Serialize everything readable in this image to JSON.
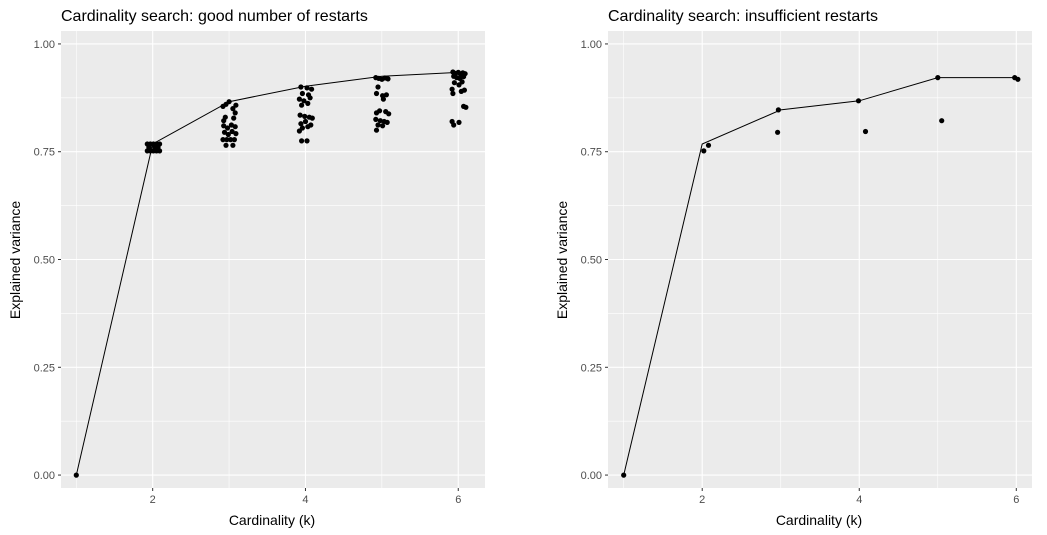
{
  "colors": {
    "panel_bg": "#ebebeb",
    "grid": "#ffffff",
    "ink": "#000000",
    "tick_text": "#4d4d4d"
  },
  "chart_data": [
    {
      "type": "scatter",
      "title": "Cardinality search: good number of restarts",
      "xlabel": "Cardinality (k)",
      "ylabel": "Explained variance",
      "xlim": [
        0.8,
        6.35
      ],
      "ylim": [
        -0.03,
        1.03
      ],
      "x_ticks": [
        2,
        4,
        6
      ],
      "x_tick_labels": [
        "2",
        "4",
        "6"
      ],
      "y_ticks": [
        0,
        0.25,
        0.5,
        0.75,
        1
      ],
      "y_tick_labels": [
        "0.00",
        "0.25",
        "0.50",
        "0.75",
        "1.00"
      ],
      "grid": true,
      "legend": "none",
      "line": {
        "x": [
          1,
          2,
          3,
          4,
          5,
          6
        ],
        "y": [
          0.0,
          0.768,
          0.866,
          0.902,
          0.925,
          0.934
        ]
      },
      "points": [
        {
          "x": 1.0,
          "y": 0.0
        },
        {
          "x": 1.93,
          "y": 0.768
        },
        {
          "x": 1.97,
          "y": 0.768
        },
        {
          "x": 2.01,
          "y": 0.768
        },
        {
          "x": 2.05,
          "y": 0.768
        },
        {
          "x": 2.09,
          "y": 0.768
        },
        {
          "x": 1.93,
          "y": 0.752
        },
        {
          "x": 1.97,
          "y": 0.752
        },
        {
          "x": 2.01,
          "y": 0.752
        },
        {
          "x": 2.05,
          "y": 0.752
        },
        {
          "x": 2.09,
          "y": 0.752
        },
        {
          "x": 1.95,
          "y": 0.76
        },
        {
          "x": 2.03,
          "y": 0.76
        },
        {
          "x": 2.07,
          "y": 0.76
        },
        {
          "x": 2.92,
          "y": 0.855
        },
        {
          "x": 2.96,
          "y": 0.86
        },
        {
          "x": 3.0,
          "y": 0.866
        },
        {
          "x": 3.05,
          "y": 0.85
        },
        {
          "x": 3.09,
          "y": 0.858
        },
        {
          "x": 2.95,
          "y": 0.83
        },
        {
          "x": 3.06,
          "y": 0.828
        },
        {
          "x": 2.93,
          "y": 0.81
        },
        {
          "x": 2.98,
          "y": 0.805
        },
        {
          "x": 3.03,
          "y": 0.812
        },
        {
          "x": 3.08,
          "y": 0.808
        },
        {
          "x": 2.94,
          "y": 0.795
        },
        {
          "x": 2.99,
          "y": 0.79
        },
        {
          "x": 3.04,
          "y": 0.797
        },
        {
          "x": 3.09,
          "y": 0.792
        },
        {
          "x": 2.92,
          "y": 0.778
        },
        {
          "x": 2.97,
          "y": 0.778
        },
        {
          "x": 3.02,
          "y": 0.778
        },
        {
          "x": 3.07,
          "y": 0.778
        },
        {
          "x": 2.96,
          "y": 0.765
        },
        {
          "x": 3.05,
          "y": 0.765
        },
        {
          "x": 2.93,
          "y": 0.822
        },
        {
          "x": 3.08,
          "y": 0.84
        },
        {
          "x": 3.94,
          "y": 0.9
        },
        {
          "x": 4.02,
          "y": 0.898
        },
        {
          "x": 4.08,
          "y": 0.895
        },
        {
          "x": 3.96,
          "y": 0.885
        },
        {
          "x": 4.04,
          "y": 0.882
        },
        {
          "x": 3.92,
          "y": 0.872
        },
        {
          "x": 3.98,
          "y": 0.868
        },
        {
          "x": 4.06,
          "y": 0.875
        },
        {
          "x": 3.95,
          "y": 0.858
        },
        {
          "x": 4.03,
          "y": 0.862
        },
        {
          "x": 3.93,
          "y": 0.835
        },
        {
          "x": 3.99,
          "y": 0.832
        },
        {
          "x": 4.05,
          "y": 0.83
        },
        {
          "x": 4.09,
          "y": 0.828
        },
        {
          "x": 3.94,
          "y": 0.815
        },
        {
          "x": 4.0,
          "y": 0.82
        },
        {
          "x": 4.07,
          "y": 0.812
        },
        {
          "x": 3.96,
          "y": 0.805
        },
        {
          "x": 4.03,
          "y": 0.808
        },
        {
          "x": 3.92,
          "y": 0.798
        },
        {
          "x": 3.95,
          "y": 0.775
        },
        {
          "x": 4.02,
          "y": 0.775
        },
        {
          "x": 4.92,
          "y": 0.922
        },
        {
          "x": 4.96,
          "y": 0.92
        },
        {
          "x": 5.0,
          "y": 0.918
        },
        {
          "x": 5.04,
          "y": 0.921
        },
        {
          "x": 5.08,
          "y": 0.919
        },
        {
          "x": 4.95,
          "y": 0.9
        },
        {
          "x": 4.93,
          "y": 0.885
        },
        {
          "x": 5.01,
          "y": 0.88
        },
        {
          "x": 5.06,
          "y": 0.882
        },
        {
          "x": 5.02,
          "y": 0.872
        },
        {
          "x": 4.97,
          "y": 0.845
        },
        {
          "x": 5.05,
          "y": 0.843
        },
        {
          "x": 4.93,
          "y": 0.84
        },
        {
          "x": 5.09,
          "y": 0.838
        },
        {
          "x": 4.92,
          "y": 0.825
        },
        {
          "x": 4.98,
          "y": 0.822
        },
        {
          "x": 5.03,
          "y": 0.82
        },
        {
          "x": 5.07,
          "y": 0.818
        },
        {
          "x": 4.95,
          "y": 0.812
        },
        {
          "x": 5.01,
          "y": 0.81
        },
        {
          "x": 4.93,
          "y": 0.8
        },
        {
          "x": 5.93,
          "y": 0.935
        },
        {
          "x": 5.96,
          "y": 0.932
        },
        {
          "x": 6.0,
          "y": 0.934
        },
        {
          "x": 6.03,
          "y": 0.93
        },
        {
          "x": 6.06,
          "y": 0.933
        },
        {
          "x": 6.09,
          "y": 0.931
        },
        {
          "x": 5.94,
          "y": 0.925
        },
        {
          "x": 5.98,
          "y": 0.922
        },
        {
          "x": 6.02,
          "y": 0.92
        },
        {
          "x": 6.07,
          "y": 0.924
        },
        {
          "x": 5.95,
          "y": 0.91
        },
        {
          "x": 6.01,
          "y": 0.905
        },
        {
          "x": 6.05,
          "y": 0.912
        },
        {
          "x": 5.92,
          "y": 0.895
        },
        {
          "x": 6.04,
          "y": 0.89
        },
        {
          "x": 6.08,
          "y": 0.893
        },
        {
          "x": 5.93,
          "y": 0.885
        },
        {
          "x": 6.07,
          "y": 0.855
        },
        {
          "x": 6.1,
          "y": 0.853
        },
        {
          "x": 5.92,
          "y": 0.82
        },
        {
          "x": 6.01,
          "y": 0.818
        },
        {
          "x": 5.94,
          "y": 0.812
        }
      ]
    },
    {
      "type": "scatter",
      "title": "Cardinality search: insufficient restarts",
      "xlabel": "Cardinality (k)",
      "ylabel": "Explained variance",
      "xlim": [
        0.8,
        6.2
      ],
      "ylim": [
        -0.03,
        1.03
      ],
      "x_ticks": [
        2,
        4,
        6
      ],
      "x_tick_labels": [
        "2",
        "4",
        "6"
      ],
      "y_ticks": [
        0,
        0.25,
        0.5,
        0.75,
        1
      ],
      "y_tick_labels": [
        "0.00",
        "0.25",
        "0.50",
        "0.75",
        "1.00"
      ],
      "grid": true,
      "legend": "none",
      "line": {
        "x": [
          1,
          2,
          3,
          4,
          5,
          6
        ],
        "y": [
          0.0,
          0.768,
          0.847,
          0.868,
          0.922,
          0.922
        ]
      },
      "points": [
        {
          "x": 1.0,
          "y": 0.0
        },
        {
          "x": 2.02,
          "y": 0.752
        },
        {
          "x": 2.08,
          "y": 0.765
        },
        {
          "x": 2.96,
          "y": 0.795
        },
        {
          "x": 2.97,
          "y": 0.847
        },
        {
          "x": 4.08,
          "y": 0.797
        },
        {
          "x": 3.99,
          "y": 0.868
        },
        {
          "x": 5.05,
          "y": 0.822
        },
        {
          "x": 5.0,
          "y": 0.922
        },
        {
          "x": 5.98,
          "y": 0.922
        },
        {
          "x": 6.02,
          "y": 0.918
        }
      ]
    }
  ]
}
